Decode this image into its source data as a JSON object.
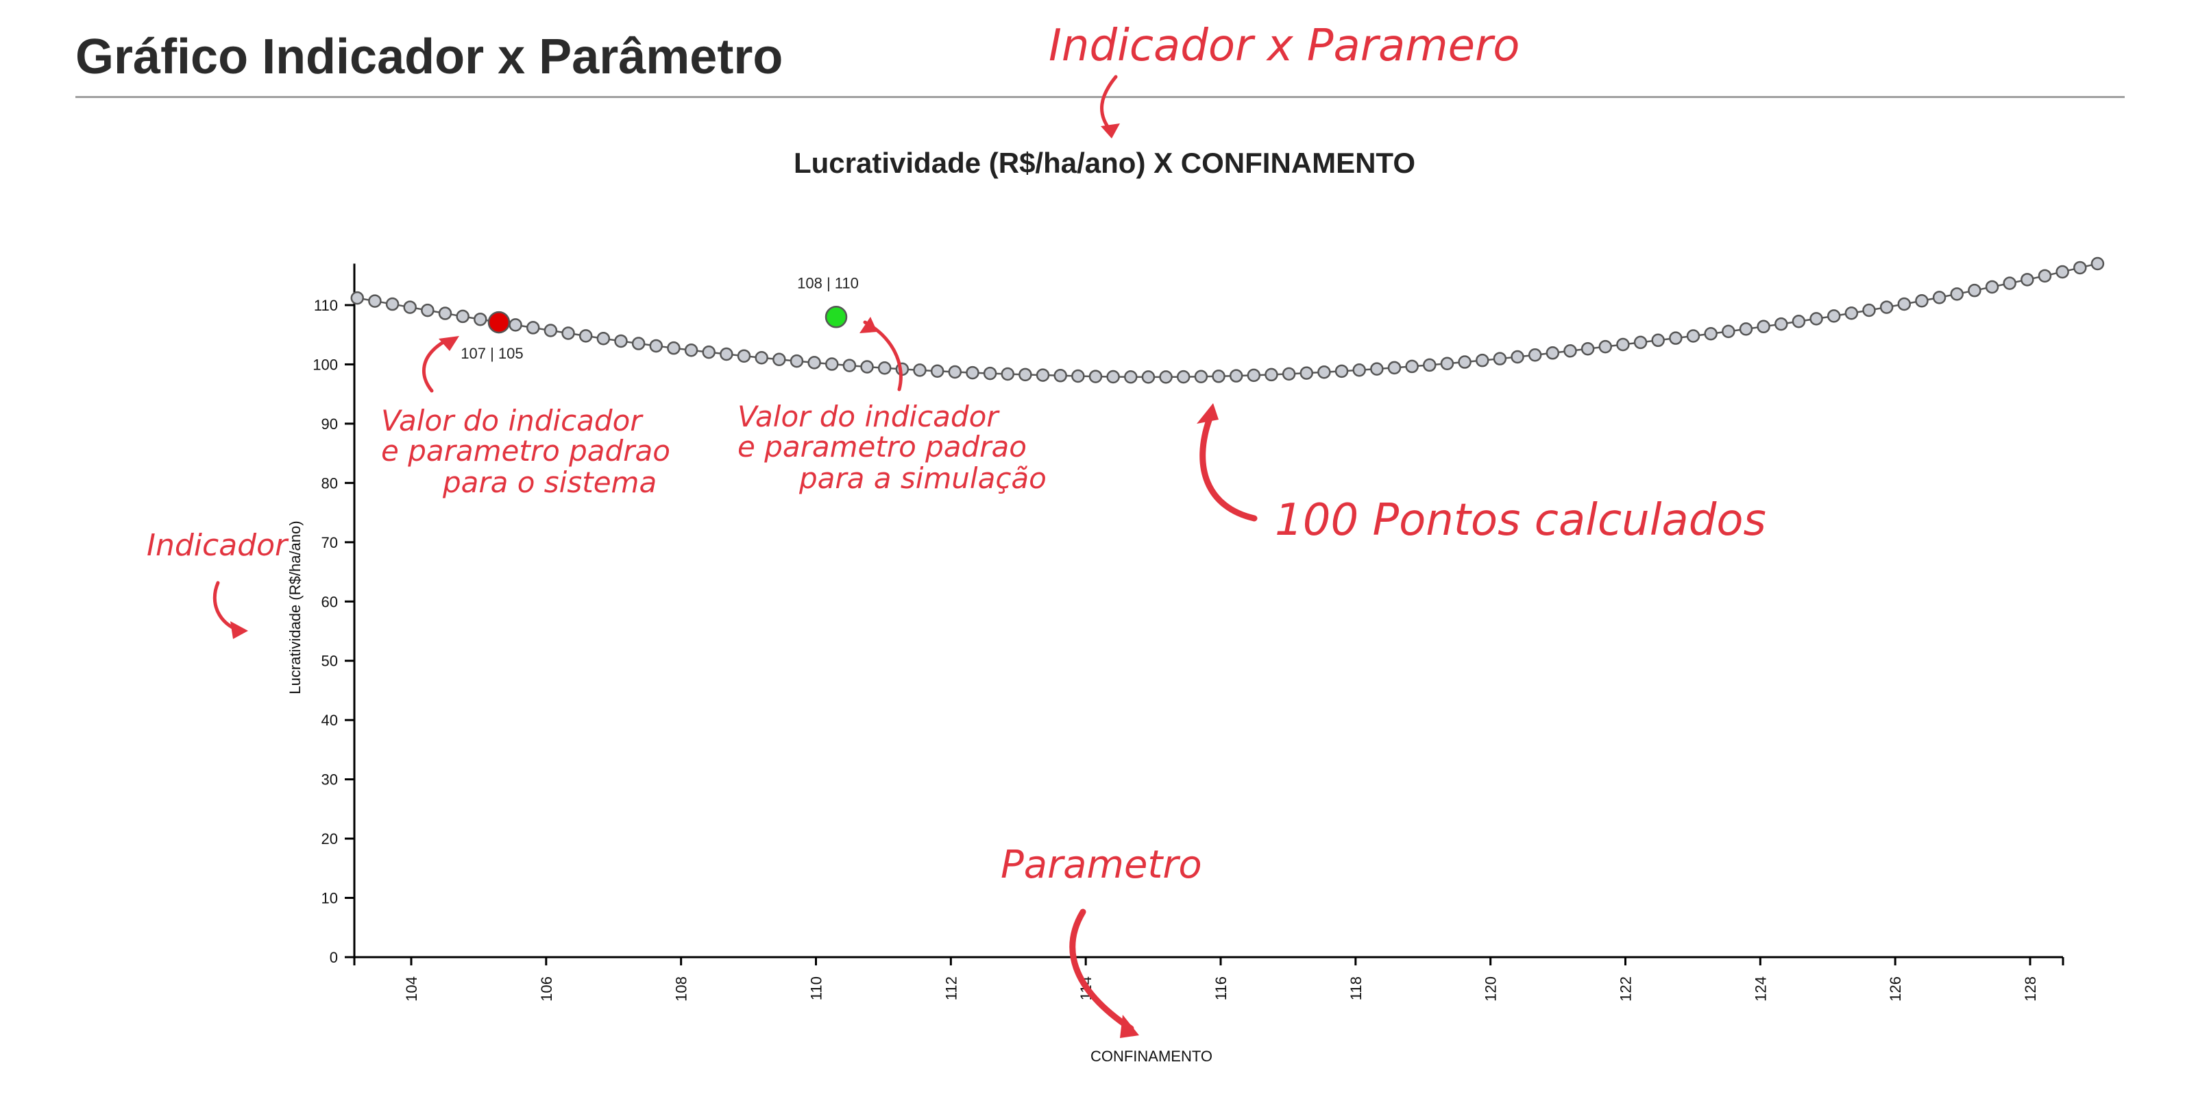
{
  "page": {
    "title": "Gráfico Indicador x Parâmetro"
  },
  "chart_data": {
    "type": "scatter",
    "title": "Lucratividade (R$/ha/ano) X CONFINAMENTO",
    "xlabel": "CONFINAMENTO",
    "ylabel": "Lucratividade (R$/ha/ano)",
    "xlim": [
      103.2,
      129.6
    ],
    "ylim": [
      0,
      117
    ],
    "x_ticks": [
      104,
      106,
      108,
      110,
      112,
      114,
      116,
      118,
      120,
      122,
      124,
      126,
      128
    ],
    "y_ticks": [
      0,
      10,
      20,
      30,
      40,
      50,
      60,
      70,
      80,
      90,
      100,
      110
    ],
    "grid": false,
    "legend": "none",
    "series": [
      {
        "points_calculated": 100,
        "x_range": [
          103.2,
          129
        ],
        "curve_y_samples": [
          {
            "x": 103.2,
            "y": 111.2
          },
          {
            "x": 105.3,
            "y": 107.1
          },
          {
            "x": 108,
            "y": 102.6
          },
          {
            "x": 111,
            "y": 99.4
          },
          {
            "x": 114,
            "y": 98.0
          },
          {
            "x": 116,
            "y": 98.0
          },
          {
            "x": 118,
            "y": 99.0
          },
          {
            "x": 120,
            "y": 100.8
          },
          {
            "x": 122,
            "y": 103.4
          },
          {
            "x": 124,
            "y": 106.3
          },
          {
            "x": 126,
            "y": 109.9
          },
          {
            "x": 128,
            "y": 114.4
          },
          {
            "x": 129,
            "y": 117.0
          }
        ],
        "color": "#c9ccd3",
        "stroke": "#555555"
      }
    ],
    "markers": [
      {
        "name": "system-default",
        "x": 105.3,
        "y": 107.1,
        "label": "107 | 105",
        "color": "#e00000"
      },
      {
        "name": "simulation-default",
        "x": 110.3,
        "y": 108.0,
        "label": "108 | 110",
        "color": "#22dd22"
      }
    ]
  },
  "annotations": {
    "chart_note": "Indicador x Paramero",
    "indicador": "Indicador",
    "parametro": "Parametro",
    "system_note": [
      "Valor do indicador",
      "e parametro padrao",
      "para o sistema"
    ],
    "simulation_note": [
      "Valor do indicador",
      "e parametro padrao",
      "para a simulação"
    ],
    "points_note": "100 Pontos calculados",
    "color": "#e2343f"
  }
}
